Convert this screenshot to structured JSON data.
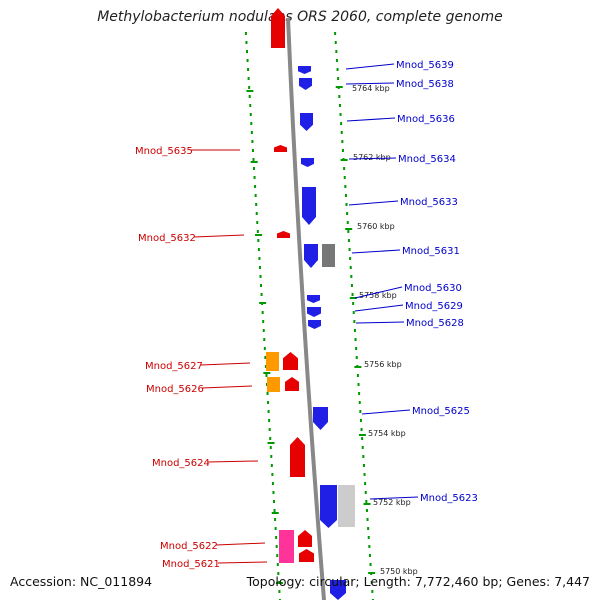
{
  "title": "Methylobacterium nodulans ORS 2060, complete genome",
  "footer": {
    "accession": "Accession: NC_011894",
    "summary": "Topology: circular; Length: 7,772,460 bp; Genes: 7,447"
  },
  "colors": {
    "forward": "#e60000",
    "reverse": "#1f1fe6",
    "orange": "#ff9900",
    "pink": "#ff3399",
    "gray_dark": "#777777",
    "gray_light": "#cccccc",
    "label_red": "#cc0000",
    "label_blue": "#0000cc",
    "tick_green": "#009900",
    "backbone": "#888888"
  },
  "ticks": [
    "5764 kbp",
    "5762 kbp",
    "5760 kbp",
    "5758 kbp",
    "5756 kbp",
    "5754 kbp",
    "5752 kbp",
    "5750 kbp"
  ],
  "genes": [
    {
      "label": "Mnod_5639",
      "strand": "reverse"
    },
    {
      "label": "Mnod_5638",
      "strand": "reverse"
    },
    {
      "label": "Mnod_5636",
      "strand": "reverse"
    },
    {
      "label": "Mnod_5635",
      "strand": "forward"
    },
    {
      "label": "Mnod_5634",
      "strand": "reverse"
    },
    {
      "label": "Mnod_5633",
      "strand": "reverse"
    },
    {
      "label": "Mnod_5632",
      "strand": "forward"
    },
    {
      "label": "Mnod_5631",
      "strand": "reverse"
    },
    {
      "label": "Mnod_5630",
      "strand": "reverse"
    },
    {
      "label": "Mnod_5629",
      "strand": "reverse"
    },
    {
      "label": "Mnod_5628",
      "strand": "reverse"
    },
    {
      "label": "Mnod_5627",
      "strand": "forward"
    },
    {
      "label": "Mnod_5626",
      "strand": "forward"
    },
    {
      "label": "Mnod_5625",
      "strand": "reverse"
    },
    {
      "label": "Mnod_5624",
      "strand": "forward"
    },
    {
      "label": "Mnod_5623",
      "strand": "reverse"
    },
    {
      "label": "Mnod_5622",
      "strand": "forward"
    },
    {
      "label": "Mnod_5621",
      "strand": "forward"
    }
  ]
}
